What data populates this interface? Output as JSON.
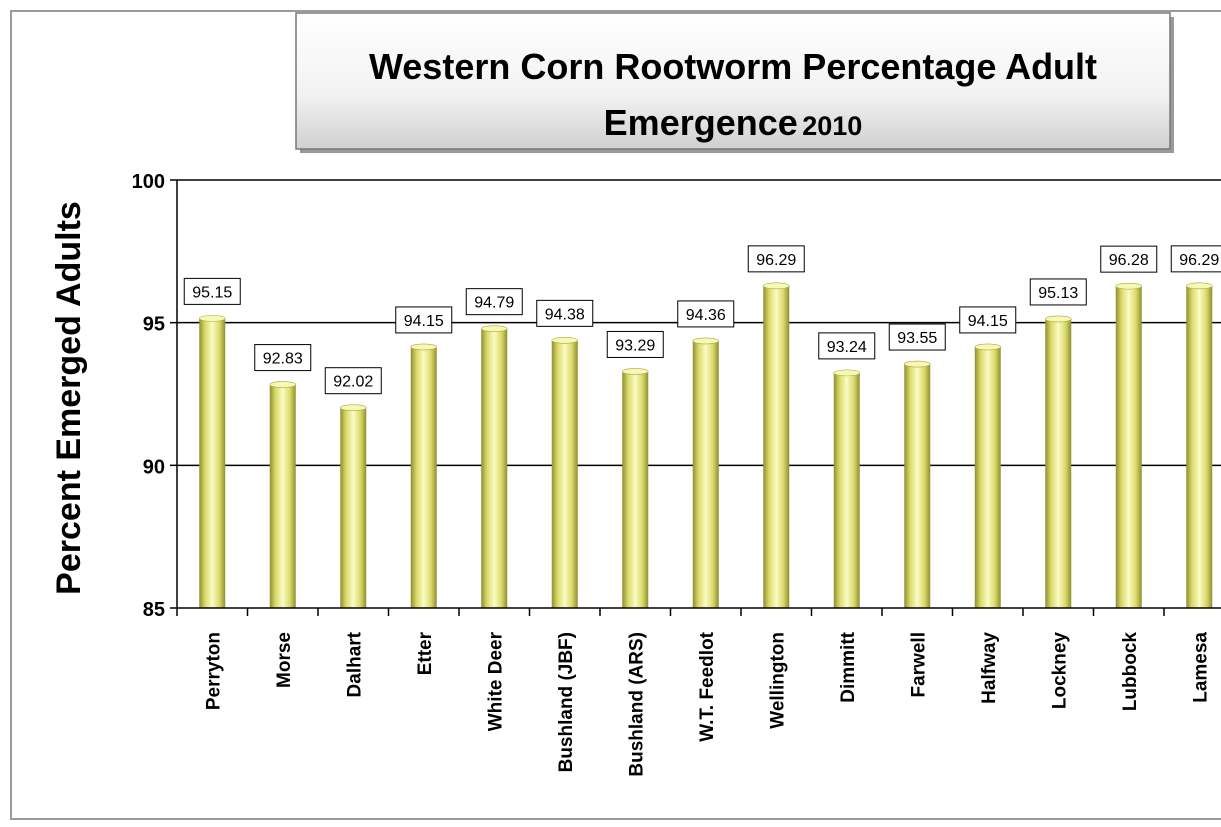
{
  "chart_data": {
    "type": "bar",
    "title": "Western Corn Rootworm Percentage Adult",
    "title_line2_main": "Emergence",
    "title_line2_year": "2010",
    "ylabel": "Percent Emerged Adults",
    "xlabel": "",
    "ylim": [
      85,
      100
    ],
    "yticks": [
      85,
      90,
      95,
      100
    ],
    "grid": true,
    "categories": [
      "Perryton",
      "Morse",
      "Dalhart",
      "Etter",
      "White Deer",
      "Bushland (JBF)",
      "Bushland (ARS)",
      "W.T. Feedlot",
      "Wellington",
      "Dimmitt",
      "Farwell",
      "Halfway",
      "Lockney",
      "Lubbock",
      "Lamesa"
    ],
    "values": [
      95.15,
      92.83,
      92.02,
      94.15,
      94.79,
      94.38,
      93.29,
      94.36,
      96.29,
      93.24,
      93.55,
      94.15,
      95.13,
      96.28,
      96.29
    ],
    "data_labels": [
      "95.15",
      "92.83",
      "92.02",
      "94.15",
      "94.79",
      "94.38",
      "93.29",
      "94.36",
      "96.29",
      "93.24",
      "93.55",
      "94.15",
      "95.13",
      "96.28",
      "96.29"
    ],
    "bar_color": "#e6e67a"
  }
}
